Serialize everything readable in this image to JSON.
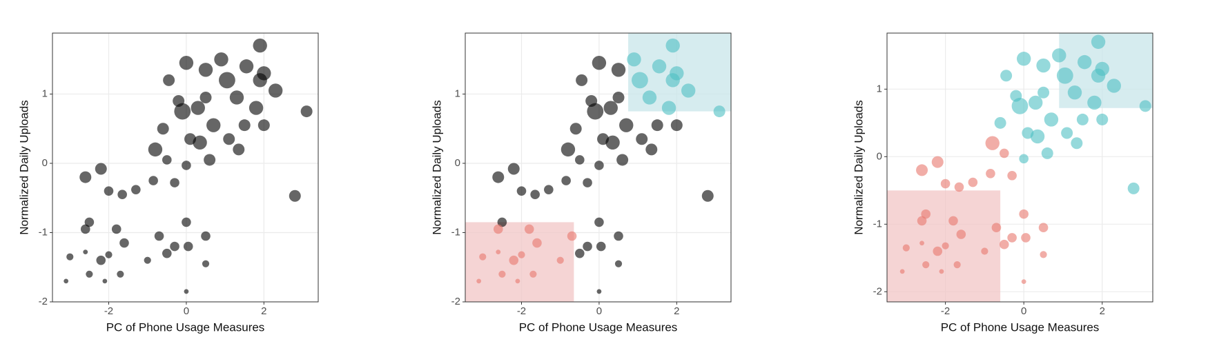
{
  "chart_data": [
    {
      "type": "scatter",
      "xlabel": "PC of Phone Usage Measures",
      "ylabel": "Normalized Daily Uploads",
      "xlim": [
        -3.45,
        3.4
      ],
      "ylim": [
        -2,
        1.88
      ],
      "xticks": [
        -2,
        0,
        2
      ],
      "yticks": [
        -2,
        -1,
        0,
        1
      ],
      "grid": true,
      "alpha": 0.6,
      "regions": [],
      "series": [
        {
          "color": "#000000",
          "x": [
            -2.6,
            -2.2,
            -2.0,
            -1.65,
            -1.3,
            -0.85,
            -0.3,
            -0.8,
            -0.6,
            -0.45,
            -0.2,
            -0.1,
            0,
            0.3,
            0.5,
            0.5,
            0.1,
            0.6,
            0.7,
            0.9,
            1.05,
            1.1,
            1.3,
            1.35,
            1.5,
            1.55,
            1.8,
            1.9,
            2.0,
            2.0,
            1.9,
            2.3,
            3.1,
            2.8,
            -0.5,
            0,
            0.35,
            -2.6,
            -2.5,
            -3.0,
            -2.6,
            -2.2,
            -1.8,
            -1.6,
            -2.0,
            -2.5,
            -1.7,
            -2.1,
            -3.1,
            -1.0,
            -0.7,
            -0.5,
            -0.3,
            0,
            0.05,
            0.5,
            0.5,
            0
          ],
          "values": [
            -0.2,
            -0.08,
            -0.4,
            -0.45,
            -0.38,
            -0.25,
            -0.28,
            0.2,
            0.5,
            1.2,
            0.9,
            0.75,
            1.45,
            0.8,
            1.35,
            0.95,
            0.35,
            0.05,
            0.55,
            1.5,
            1.2,
            0.35,
            0.95,
            0.2,
            0.55,
            1.4,
            0.8,
            1.2,
            0.55,
            1.3,
            1.7,
            1.05,
            0.75,
            -0.47,
            0.05,
            -0.03,
            0.3,
            -0.95,
            -0.85,
            -1.35,
            -1.28,
            -1.4,
            -0.95,
            -1.15,
            -1.32,
            -1.6,
            -1.6,
            -1.7,
            -1.7,
            -1.4,
            -1.05,
            -1.3,
            -1.2,
            -0.85,
            -1.2,
            -1.05,
            -1.45,
            -1.85
          ],
          "sizes": [
            5,
            5,
            4,
            4,
            4,
            4,
            4,
            6,
            5,
            5,
            5,
            7,
            6,
            6,
            6,
            5,
            5,
            5,
            6,
            6,
            7,
            5,
            6,
            5,
            5,
            6,
            6,
            6,
            5,
            6,
            6,
            6,
            5,
            5,
            4,
            4,
            6,
            4,
            4,
            3,
            2,
            4,
            4,
            4,
            3,
            3,
            3,
            2,
            2,
            3,
            4,
            4,
            4,
            4,
            4,
            4,
            3,
            2
          ]
        }
      ]
    },
    {
      "type": "scatter",
      "xlabel": "PC of Phone Usage Measures",
      "ylabel": "Normalized Daily Uploads",
      "xlim": [
        -3.45,
        3.4
      ],
      "ylim": [
        -2,
        1.88
      ],
      "xticks": [
        -2,
        0,
        2
      ],
      "yticks": [
        -2,
        -1,
        0,
        1
      ],
      "grid": true,
      "alpha": 0.6,
      "regions": [
        {
          "color": "#f2c6c6",
          "x": [
            -3.45,
            -0.65
          ],
          "y": [
            -2,
            -0.85
          ]
        },
        {
          "color": "#c8e6ea",
          "x": [
            0.75,
            3.4
          ],
          "y": [
            0.75,
            1.88
          ]
        }
      ],
      "series": [
        {
          "color": "#000000",
          "x": [
            -2.6,
            -2.2,
            -2.0,
            -1.65,
            -1.3,
            -0.85,
            -0.3,
            -0.8,
            -0.6,
            -0.45,
            -0.2,
            -0.1,
            0,
            0.3,
            0.5,
            0.5,
            0.1,
            0.6,
            0.7,
            1.1,
            1.35,
            1.5,
            2.0,
            2.8,
            -0.5,
            0,
            0.35,
            -2.5,
            -0.5,
            -0.3,
            0,
            0.05,
            0.5,
            0.5,
            0
          ],
          "values": [
            -0.2,
            -0.08,
            -0.4,
            -0.45,
            -0.38,
            -0.25,
            -0.28,
            0.2,
            0.5,
            1.2,
            0.9,
            0.75,
            1.45,
            0.8,
            1.35,
            0.95,
            0.35,
            0.05,
            0.55,
            0.35,
            0.2,
            0.55,
            0.55,
            -0.47,
            0.05,
            -0.03,
            0.3,
            -0.85,
            -1.3,
            -1.2,
            -0.85,
            -1.2,
            -1.05,
            -1.45,
            -1.85
          ],
          "sizes": [
            5,
            5,
            4,
            4,
            4,
            4,
            4,
            6,
            5,
            5,
            5,
            7,
            6,
            6,
            6,
            5,
            5,
            5,
            6,
            5,
            5,
            5,
            5,
            5,
            4,
            4,
            6,
            4,
            4,
            4,
            4,
            4,
            4,
            3,
            2
          ]
        },
        {
          "color": "#e8766d",
          "x": [
            -2.6,
            -3.0,
            -2.6,
            -2.2,
            -1.8,
            -1.6,
            -2.0,
            -2.5,
            -1.7,
            -2.1,
            -3.1,
            -1.0,
            -0.7
          ],
          "values": [
            -0.95,
            -1.35,
            -1.28,
            -1.4,
            -0.95,
            -1.15,
            -1.32,
            -1.6,
            -1.6,
            -1.7,
            -1.7,
            -1.4,
            -1.05
          ],
          "sizes": [
            4,
            3,
            2,
            4,
            4,
            4,
            3,
            3,
            3,
            2,
            2,
            3,
            4
          ]
        },
        {
          "color": "#4fbfc3",
          "x": [
            0.9,
            1.05,
            1.3,
            1.55,
            1.8,
            1.9,
            2.0,
            1.9,
            2.3,
            3.1
          ],
          "values": [
            1.5,
            1.2,
            0.95,
            1.4,
            0.8,
            1.2,
            1.3,
            1.7,
            1.05,
            0.75
          ],
          "sizes": [
            6,
            7,
            6,
            6,
            6,
            6,
            6,
            6,
            6,
            5
          ]
        }
      ]
    },
    {
      "type": "scatter",
      "xlabel": "PC of Phone Usage Measures",
      "ylabel": "Normalized Daily Uploads",
      "xlim": [
        -3.49,
        3.29
      ],
      "ylim": [
        -2.15,
        1.83
      ],
      "xticks": [
        -2,
        0,
        2
      ],
      "yticks": [
        -2,
        -1,
        0,
        1
      ],
      "grid": true,
      "alpha": 0.6,
      "regions": [
        {
          "color": "#f2c6c6",
          "x": [
            -3.49,
            -0.6
          ],
          "y": [
            -2.15,
            -0.5
          ]
        },
        {
          "color": "#c8e6ea",
          "x": [
            0.9,
            3.29
          ],
          "y": [
            0.72,
            1.83
          ]
        }
      ],
      "series": [
        {
          "color": "#e8766d",
          "x": [
            -2.6,
            -2.2,
            -2.0,
            -1.65,
            -1.3,
            -0.85,
            -0.3,
            -0.8,
            -0.5,
            -2.6,
            -2.5,
            -3.0,
            -2.6,
            -2.2,
            -1.8,
            -1.6,
            -2.0,
            -2.5,
            -1.7,
            -2.1,
            -3.1,
            -1.0,
            -0.7,
            -0.5,
            -0.3,
            0,
            0.05,
            0.5,
            0.5,
            0
          ],
          "values": [
            -0.2,
            -0.08,
            -0.4,
            -0.45,
            -0.38,
            -0.25,
            -0.28,
            0.2,
            0.05,
            -0.95,
            -0.85,
            -1.35,
            -1.28,
            -1.4,
            -0.95,
            -1.15,
            -1.32,
            -1.6,
            -1.6,
            -1.7,
            -1.7,
            -1.4,
            -1.05,
            -1.3,
            -1.2,
            -0.85,
            -1.2,
            -1.05,
            -1.45,
            -1.85
          ],
          "sizes": [
            5,
            5,
            4,
            4,
            4,
            4,
            4,
            6,
            4,
            4,
            4,
            3,
            2,
            4,
            4,
            4,
            3,
            3,
            3,
            2,
            2,
            3,
            4,
            4,
            4,
            4,
            4,
            4,
            3,
            2
          ]
        },
        {
          "color": "#4fbfc3",
          "x": [
            -0.6,
            -0.45,
            -0.2,
            -0.1,
            0,
            0.3,
            0.5,
            0.5,
            0.1,
            0.6,
            0.7,
            0.9,
            1.05,
            1.1,
            1.3,
            1.35,
            1.5,
            1.55,
            1.8,
            1.9,
            2.0,
            2.0,
            1.9,
            2.3,
            3.1,
            2.8,
            0,
            0.35
          ],
          "values": [
            0.5,
            1.2,
            0.9,
            0.75,
            1.45,
            0.8,
            1.35,
            0.95,
            0.35,
            0.05,
            0.55,
            1.5,
            1.2,
            0.35,
            0.95,
            0.2,
            0.55,
            1.4,
            0.8,
            1.2,
            0.55,
            1.3,
            1.7,
            1.05,
            0.75,
            -0.47,
            -0.03,
            0.3
          ],
          "sizes": [
            5,
            5,
            5,
            7,
            6,
            6,
            6,
            5,
            5,
            5,
            6,
            6,
            7,
            5,
            6,
            5,
            5,
            6,
            6,
            6,
            5,
            6,
            6,
            6,
            5,
            5,
            4,
            6
          ]
        }
      ]
    }
  ]
}
